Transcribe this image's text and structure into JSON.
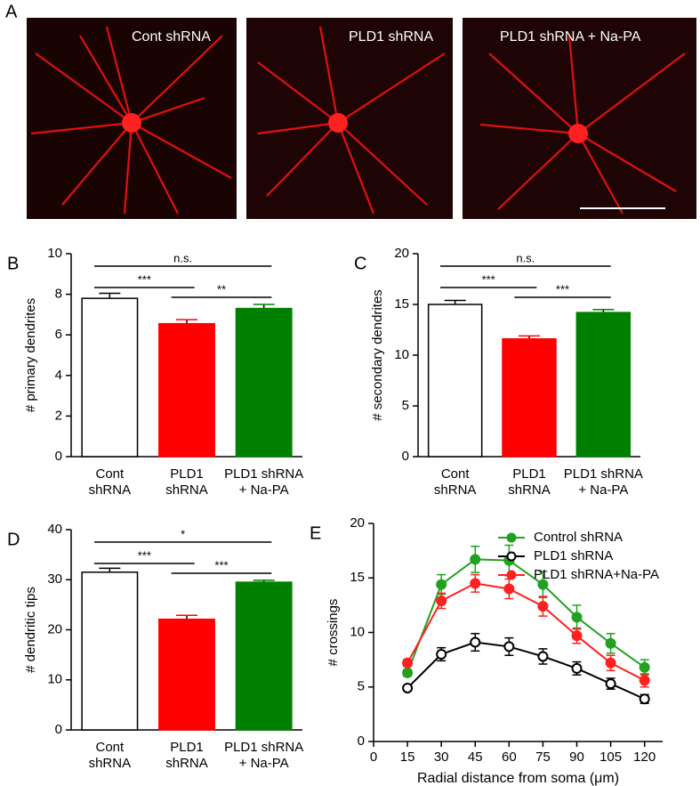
{
  "images": {
    "label": "A",
    "captions": [
      "Cont shRNA",
      "PLD1 shRNA",
      "PLD1 shRNA + Na-PA"
    ]
  },
  "chart_data": [
    {
      "type": "bar",
      "label": "B",
      "ylabel": "# primary dendrites",
      "categories": [
        "Cont\nshRNA",
        "PLD1\nshRNA",
        "PLD1 shRNA\n+ Na-PA"
      ],
      "values": [
        7.8,
        6.55,
        7.3
      ],
      "errors": [
        0.25,
        0.2,
        0.2
      ],
      "colors": [
        "#ffffff",
        "#ff0000",
        "#008000"
      ],
      "ylim": [
        0,
        10
      ],
      "yticks": [
        0,
        2,
        4,
        6,
        8,
        10
      ],
      "annotations": [
        {
          "between": [
            "Cont\nshRNA",
            "PLD1\nshRNA"
          ],
          "label": "***"
        },
        {
          "between": [
            "PLD1\nshRNA",
            "PLD1 shRNA\n+ Na-PA"
          ],
          "label": "**"
        },
        {
          "between": [
            "Cont\nshRNA",
            "PLD1 shRNA\n+ Na-PA"
          ],
          "label": "n.s."
        }
      ]
    },
    {
      "type": "bar",
      "label": "C",
      "ylabel": "# secondary dendrites",
      "categories": [
        "Cont\nshRNA",
        "PLD1\nshRNA",
        "PLD1 shRNA\n+ Na-PA"
      ],
      "values": [
        15.0,
        11.6,
        14.2
      ],
      "errors": [
        0.4,
        0.3,
        0.3
      ],
      "colors": [
        "#ffffff",
        "#ff0000",
        "#008000"
      ],
      "ylim": [
        0,
        20
      ],
      "yticks": [
        0,
        5,
        10,
        15,
        20
      ],
      "annotations": [
        {
          "between": [
            "Cont\nshRNA",
            "PLD1\nshRNA"
          ],
          "label": "***"
        },
        {
          "between": [
            "PLD1\nshRNA",
            "PLD1 shRNA\n+ Na-PA"
          ],
          "label": "***"
        },
        {
          "between": [
            "Cont\nshRNA",
            "PLD1 shRNA\n+ Na-PA"
          ],
          "label": "n.s."
        }
      ]
    },
    {
      "type": "bar",
      "label": "D",
      "ylabel": "# dendritic tips",
      "categories": [
        "Cont\nshRNA",
        "PLD1\nshRNA",
        "PLD1 shRNA\n+ Na-PA"
      ],
      "values": [
        31.5,
        22.1,
        29.5
      ],
      "errors": [
        0.8,
        0.8,
        0.4
      ],
      "colors": [
        "#ffffff",
        "#ff0000",
        "#008000"
      ],
      "ylim": [
        0,
        40
      ],
      "yticks": [
        0,
        10,
        20,
        30,
        40
      ],
      "annotations": [
        {
          "between": [
            "Cont\nshRNA",
            "PLD1\nshRNA"
          ],
          "label": "***"
        },
        {
          "between": [
            "PLD1\nshRNA",
            "PLD1 shRNA\n+ Na-PA"
          ],
          "label": "***"
        },
        {
          "between": [
            "Cont\nshRNA",
            "PLD1 shRNA\n+ Na-PA"
          ],
          "label": "*"
        }
      ]
    },
    {
      "type": "line",
      "label": "E",
      "xlabel": "Radial distance from soma (μm)",
      "ylabel": "# crossings",
      "x": [
        15,
        30,
        45,
        60,
        75,
        90,
        105,
        120
      ],
      "series": [
        {
          "name": "Control shRNA",
          "color": "#22a022",
          "marker": "filled",
          "values": [
            6.3,
            14.4,
            16.7,
            16.6,
            14.4,
            11.4,
            9.0,
            6.8
          ],
          "errors": [
            0.3,
            0.9,
            1.2,
            1.4,
            1.2,
            1.1,
            0.9,
            0.7
          ]
        },
        {
          "name": "PLD1 shRNA",
          "color": "#000000",
          "marker": "open",
          "values": [
            4.9,
            8.0,
            9.1,
            8.7,
            7.8,
            6.7,
            5.3,
            3.9
          ],
          "errors": [
            0.2,
            0.6,
            0.8,
            0.8,
            0.7,
            0.6,
            0.5,
            0.4
          ]
        },
        {
          "name": "PLD1 shRNA+Na-PA",
          "color": "#ff2020",
          "marker": "filled",
          "values": [
            7.2,
            12.9,
            14.5,
            14.0,
            12.4,
            9.7,
            7.2,
            5.6
          ],
          "errors": [
            0.3,
            0.7,
            0.8,
            0.9,
            0.9,
            0.7,
            0.7,
            0.6
          ]
        }
      ],
      "xlim": [
        0,
        128
      ],
      "xticks": [
        0,
        15,
        30,
        45,
        60,
        75,
        90,
        105,
        120
      ],
      "ylim": [
        0,
        20
      ],
      "yticks": [
        0,
        5,
        10,
        15,
        20
      ],
      "legend": "top"
    }
  ]
}
